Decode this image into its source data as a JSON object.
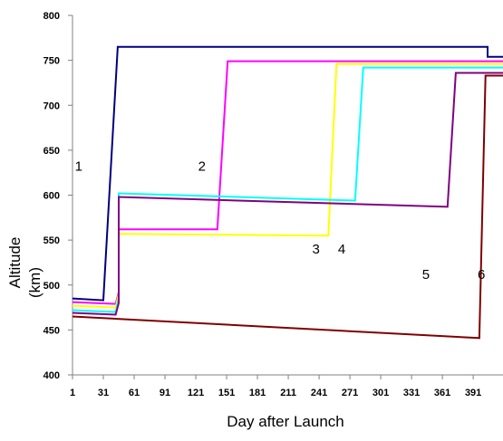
{
  "chart_data": {
    "type": "line",
    "title": "",
    "xlabel": "Day after Launch",
    "ylabel": "Altitude (km)",
    "xlim": [
      1,
      420
    ],
    "ylim": [
      400,
      800
    ],
    "xticks": [
      1,
      31,
      61,
      91,
      121,
      151,
      181,
      211,
      241,
      271,
      301,
      331,
      361,
      391
    ],
    "yticks": [
      400,
      450,
      500,
      550,
      600,
      650,
      700,
      750,
      800
    ],
    "grid": false,
    "legend": "none",
    "series": [
      {
        "label": "1",
        "color": "#000080",
        "x": [
          1,
          31,
          31,
          45,
          45,
          405,
          405,
          420
        ],
        "y": [
          485,
          483,
          483,
          765,
          765,
          765,
          754,
          754
        ]
      },
      {
        "label": "2",
        "color": "#FF00FF",
        "x": [
          1,
          43,
          43,
          46,
          46,
          142,
          142,
          152,
          152,
          420
        ],
        "y": [
          481,
          479,
          479,
          492,
          562,
          562,
          562,
          749,
          749,
          749
        ]
      },
      {
        "label": "3",
        "color": "#FFFF00",
        "x": [
          1,
          43,
          43,
          46,
          46,
          250,
          250,
          258,
          258,
          420
        ],
        "y": [
          477,
          475,
          475,
          490,
          557,
          555,
          555,
          746,
          746,
          746
        ]
      },
      {
        "label": "4",
        "color": "#00FFFF",
        "x": [
          1,
          43,
          43,
          46,
          46,
          276,
          276,
          284,
          284,
          420
        ],
        "y": [
          472,
          470,
          470,
          485,
          602,
          594,
          594,
          742,
          742,
          742
        ]
      },
      {
        "label": "5",
        "color": "#800080",
        "x": [
          1,
          43,
          43,
          46,
          46,
          366,
          366,
          374,
          374,
          420
        ],
        "y": [
          469,
          467,
          467,
          480,
          598,
          587,
          587,
          736,
          736,
          736
        ]
      },
      {
        "label": "6",
        "color": "#800000",
        "x": [
          1,
          397,
          397,
          403,
          403,
          420
        ],
        "y": [
          465,
          441,
          441,
          733,
          733,
          733
        ]
      }
    ],
    "annotations": [
      {
        "text": "1",
        "x": 7,
        "y": 627,
        "series": "1"
      },
      {
        "text": "2",
        "x": 127,
        "y": 627,
        "series": "2"
      },
      {
        "text": "3",
        "x": 238,
        "y": 535,
        "series": "3"
      },
      {
        "text": "4",
        "x": 263,
        "y": 535,
        "series": "4"
      },
      {
        "text": "5",
        "x": 345,
        "y": 507,
        "series": "5"
      },
      {
        "text": "6",
        "x": 399,
        "y": 507,
        "series": "6"
      }
    ]
  }
}
